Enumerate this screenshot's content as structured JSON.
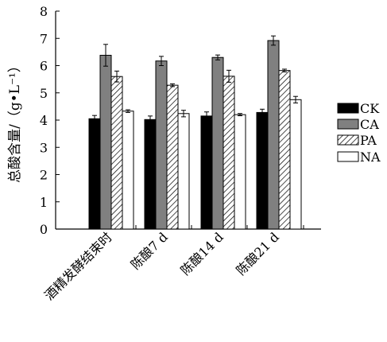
{
  "chart_data": {
    "type": "bar",
    "ylabel": "总酸含量/（g•L⁻¹）",
    "xlabel": "",
    "ylim": [
      0,
      8
    ],
    "yticks": [
      0,
      1,
      2,
      3,
      4,
      5,
      6,
      7,
      8
    ],
    "grid": false,
    "legend_position": "right",
    "error_bars": true,
    "categories": [
      "酒精发酵结束时",
      "陈酿7 d",
      "陈酿14 d",
      "陈酿21 d"
    ],
    "series": [
      {
        "name": "CK",
        "fill": "black",
        "color": "#000000",
        "values": [
          4.05,
          4.02,
          4.15,
          4.28
        ],
        "errors": [
          0.12,
          0.13,
          0.15,
          0.12
        ]
      },
      {
        "name": "CA",
        "fill": "gray",
        "color": "#808080",
        "values": [
          6.38,
          6.17,
          6.3,
          6.92
        ],
        "errors": [
          0.4,
          0.17,
          0.09,
          0.17
        ]
      },
      {
        "name": "PA",
        "fill": "hatch",
        "color": "#000000",
        "values": [
          5.6,
          5.28,
          5.61,
          5.82
        ],
        "errors": [
          0.2,
          0.05,
          0.22,
          0.05
        ]
      },
      {
        "name": "NA",
        "fill": "white",
        "color": "#ffffff",
        "values": [
          4.33,
          4.24,
          4.2,
          4.75
        ],
        "errors": [
          0.05,
          0.12,
          0.04,
          0.12
        ]
      }
    ]
  }
}
